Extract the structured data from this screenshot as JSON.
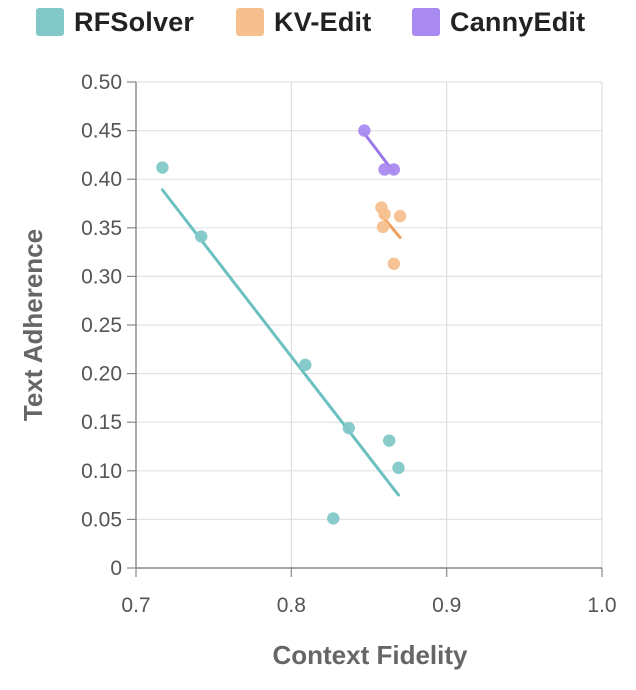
{
  "chart_data": {
    "type": "scatter",
    "xlabel": "Context Fidelity",
    "ylabel": "Text Adherence",
    "xlim": [
      0.7,
      1.0
    ],
    "ylim": [
      0,
      0.5
    ],
    "xticks": [
      "0.7",
      "0.8",
      "0.9",
      "1.0"
    ],
    "xtick_values": [
      0.7,
      0.8,
      0.9,
      1.0
    ],
    "yticks": [
      "0",
      "0.05",
      "0.10",
      "0.15",
      "0.20",
      "0.25",
      "0.30",
      "0.35",
      "0.40",
      "0.45",
      "0.50"
    ],
    "ytick_values": [
      0,
      0.05,
      0.1,
      0.15,
      0.2,
      0.25,
      0.3,
      0.35,
      0.4,
      0.45,
      0.5
    ],
    "grid": true,
    "legend_position": "top",
    "series": [
      {
        "name": "RFSolver",
        "color": "#82c8c8",
        "line_color": "#6cc0c0",
        "points": [
          {
            "x": 0.717,
            "y": 0.412
          },
          {
            "x": 0.742,
            "y": 0.341
          },
          {
            "x": 0.809,
            "y": 0.209
          },
          {
            "x": 0.827,
            "y": 0.051
          },
          {
            "x": 0.837,
            "y": 0.144
          },
          {
            "x": 0.863,
            "y": 0.131
          },
          {
            "x": 0.869,
            "y": 0.103
          }
        ],
        "trendline": [
          {
            "x": 0.717,
            "y": 0.389
          },
          {
            "x": 0.869,
            "y": 0.075
          }
        ]
      },
      {
        "name": "KV-Edit",
        "color": "#f5c08e",
        "line_color": "#f0a060",
        "points": [
          {
            "x": 0.858,
            "y": 0.371
          },
          {
            "x": 0.86,
            "y": 0.364
          },
          {
            "x": 0.859,
            "y": 0.351
          },
          {
            "x": 0.87,
            "y": 0.362
          },
          {
            "x": 0.866,
            "y": 0.313
          }
        ],
        "trendline": [
          {
            "x": 0.858,
            "y": 0.363
          },
          {
            "x": 0.87,
            "y": 0.34
          }
        ]
      },
      {
        "name": "CannyEdit",
        "color": "#a98af0",
        "line_color": "#9a7ae8",
        "points": [
          {
            "x": 0.847,
            "y": 0.45
          },
          {
            "x": 0.86,
            "y": 0.41
          },
          {
            "x": 0.866,
            "y": 0.41
          }
        ],
        "trendline": [
          {
            "x": 0.847,
            "y": 0.447
          },
          {
            "x": 0.866,
            "y": 0.407
          }
        ]
      }
    ]
  }
}
